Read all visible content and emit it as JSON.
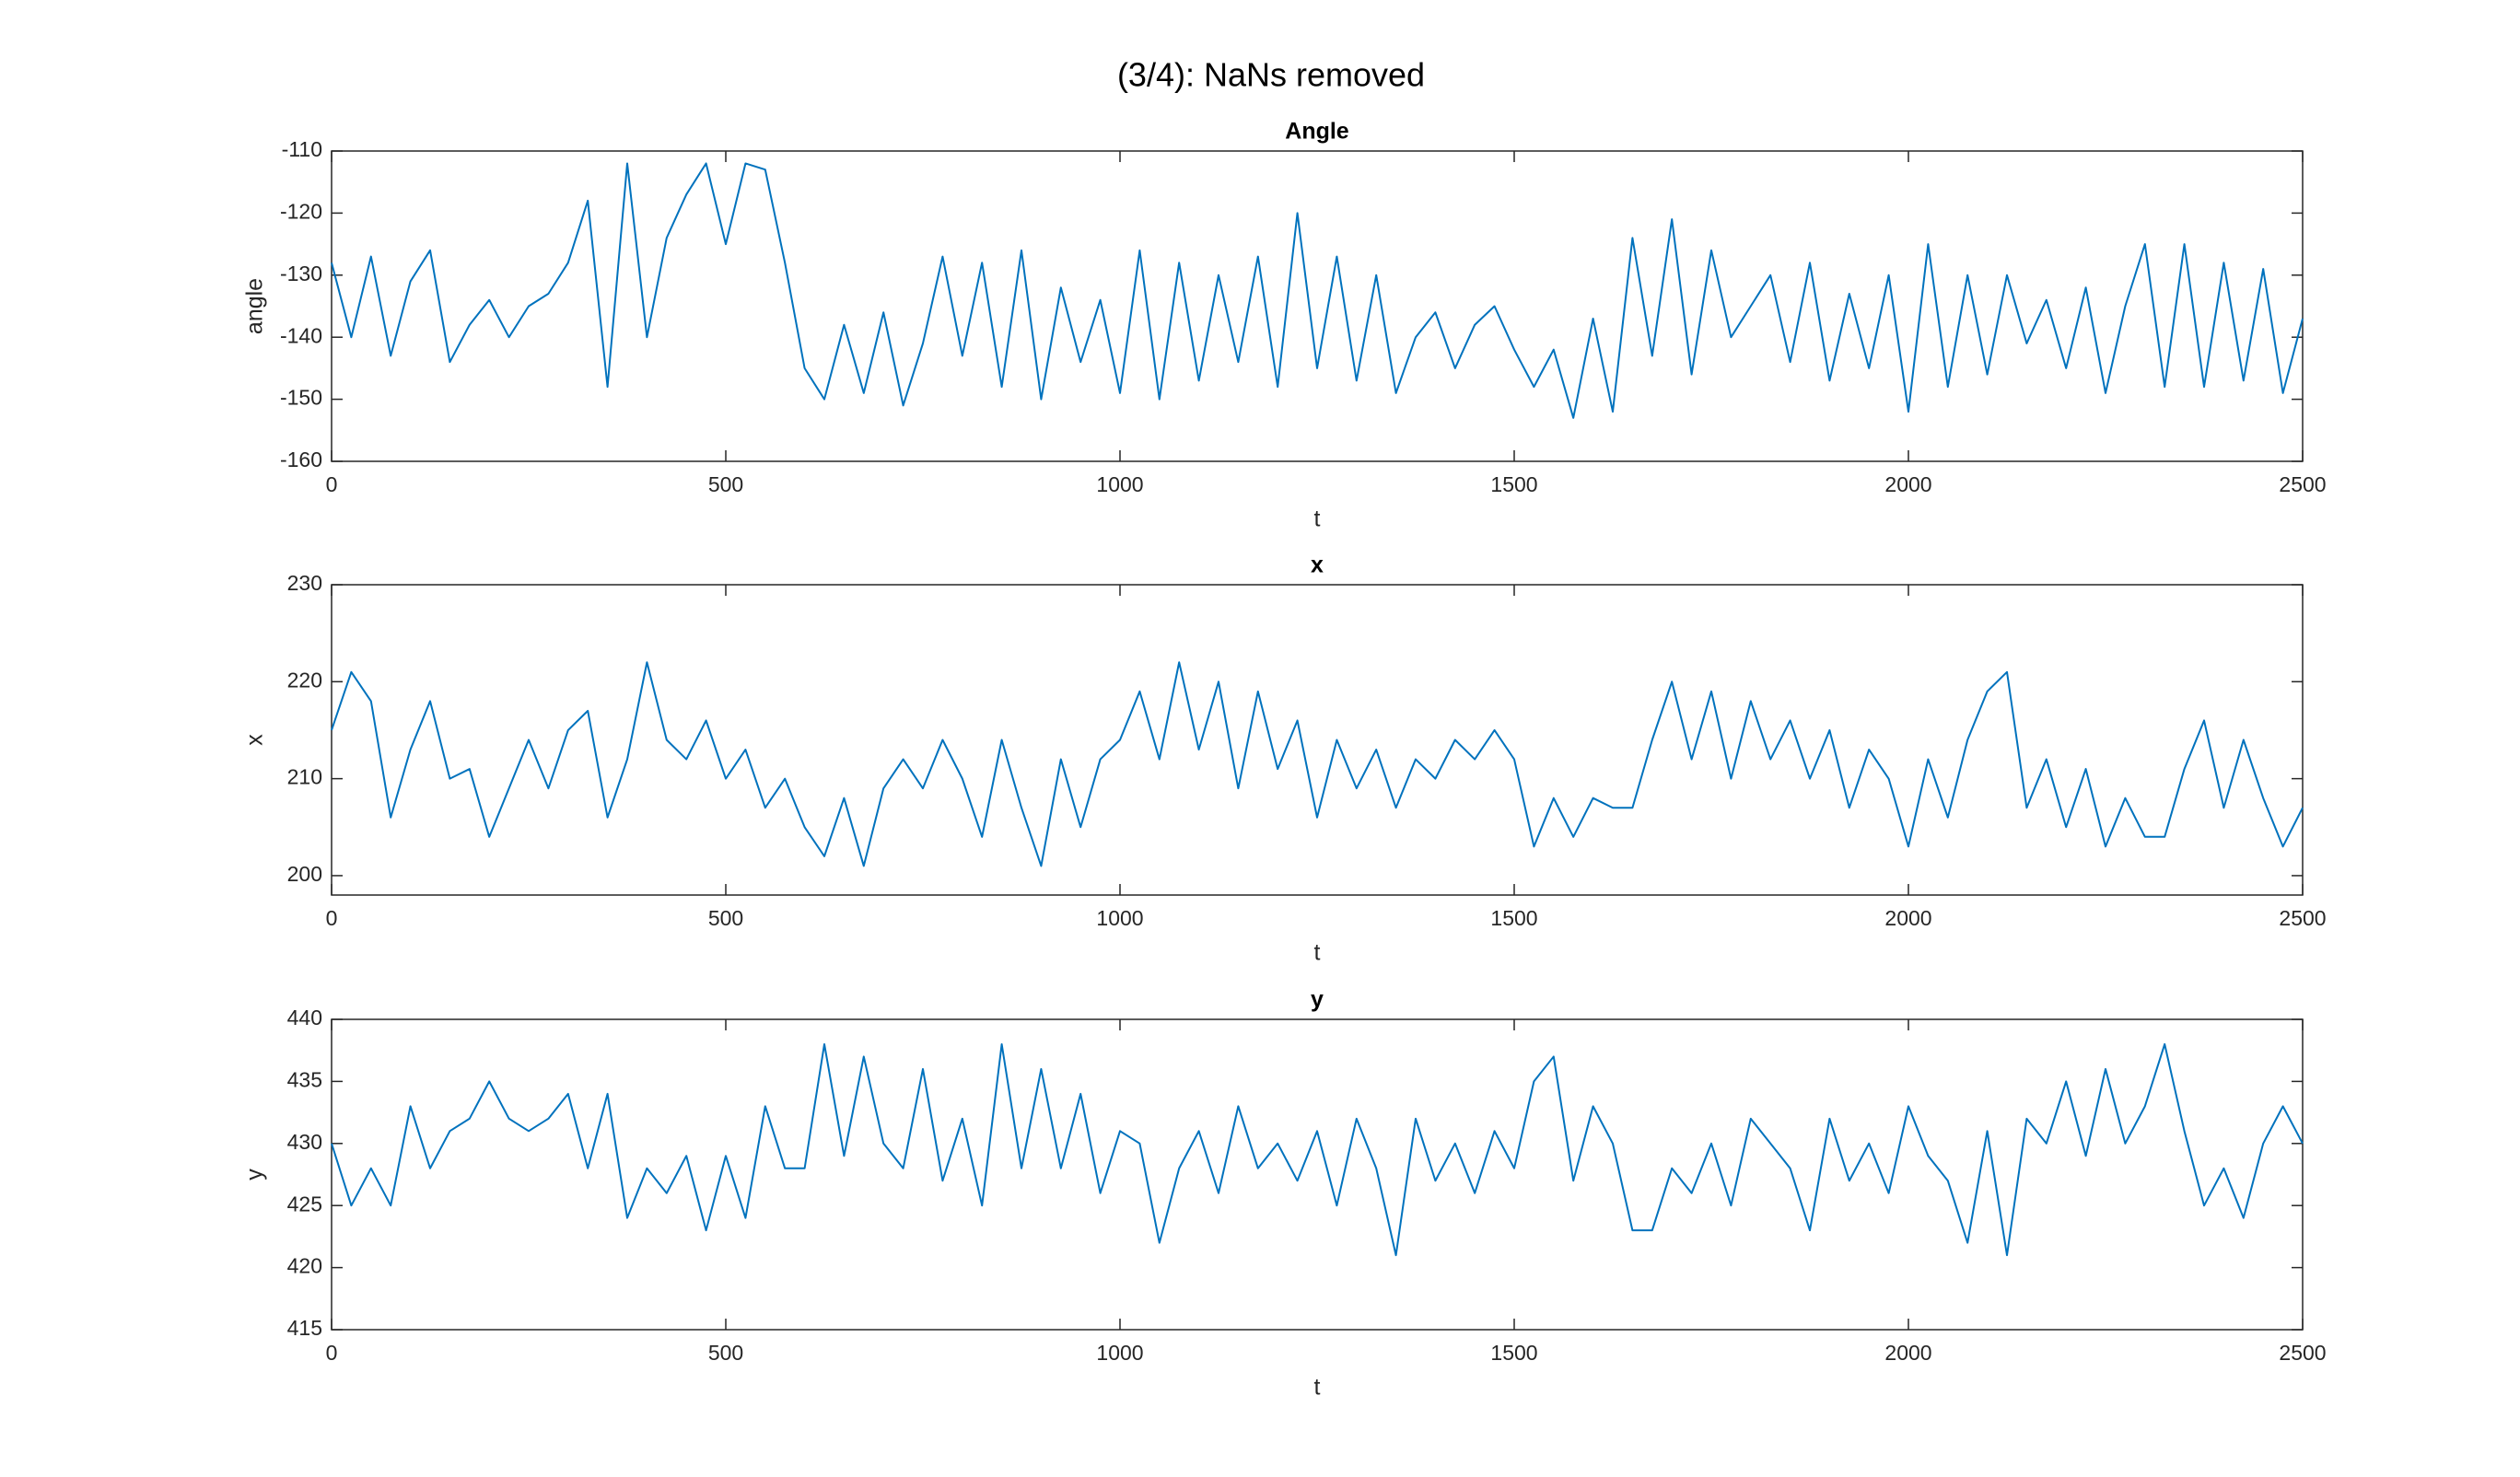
{
  "title": "(3/4): NaNs removed",
  "chart_data": [
    {
      "type": "line",
      "title": "Angle",
      "xlabel": "t",
      "ylabel": "angle",
      "xlim": [
        0,
        2500
      ],
      "xticks": [
        0,
        500,
        1000,
        1500,
        2000,
        2500
      ],
      "ylim": [
        -160,
        -110
      ],
      "yticks": [
        -160,
        -150,
        -140,
        -130,
        -120,
        -110
      ],
      "x": [
        0,
        25,
        50,
        75,
        100,
        125,
        150,
        175,
        200,
        225,
        250,
        275,
        300,
        325,
        350,
        375,
        400,
        425,
        450,
        475,
        500,
        525,
        550,
        575,
        600,
        625,
        650,
        675,
        700,
        725,
        750,
        775,
        800,
        825,
        850,
        875,
        900,
        925,
        950,
        975,
        1000,
        1025,
        1050,
        1075,
        1100,
        1125,
        1150,
        1175,
        1200,
        1225,
        1250,
        1275,
        1300,
        1325,
        1350,
        1375,
        1400,
        1425,
        1450,
        1475,
        1500,
        1525,
        1550,
        1575,
        1600,
        1625,
        1650,
        1675,
        1700,
        1725,
        1750,
        1775,
        1800,
        1825,
        1850,
        1875,
        1900,
        1925,
        1950,
        1975,
        2000,
        2025,
        2050,
        2075,
        2100,
        2125,
        2150,
        2175,
        2200,
        2225,
        2250,
        2275,
        2300,
        2325,
        2350,
        2375,
        2400,
        2425,
        2450,
        2475,
        2500
      ],
      "series": [
        {
          "color": "#0072BD",
          "values": [
            -128,
            -140,
            -127,
            -143,
            -131,
            -126,
            -144,
            -138,
            -134,
            -140,
            -135,
            -133,
            -128,
            -118,
            -148,
            -112,
            -140,
            -124,
            -117,
            -112,
            -125,
            -112,
            -113,
            -128,
            -145,
            -150,
            -138,
            -149,
            -136,
            -151,
            -141,
            -127,
            -143,
            -128,
            -148,
            -126,
            -150,
            -132,
            -144,
            -134,
            -149,
            -126,
            -150,
            -128,
            -147,
            -130,
            -144,
            -127,
            -148,
            -120,
            -145,
            -127,
            -147,
            -130,
            -149,
            -140,
            -136,
            -145,
            -138,
            -135,
            -142,
            -148,
            -142,
            -153,
            -137,
            -152,
            -124,
            -143,
            -121,
            -146,
            -126,
            -140,
            -135,
            -130,
            -144,
            -128,
            -147,
            -133,
            -145,
            -130,
            -152,
            -125,
            -148,
            -130,
            -146,
            -130,
            -141,
            -134,
            -145,
            -132,
            -149,
            -135,
            -125,
            -148,
            -125,
            -148,
            -128,
            -147,
            -129,
            -149,
            -137
          ]
        }
      ]
    },
    {
      "type": "line",
      "title": "x",
      "xlabel": "t",
      "ylabel": "x",
      "xlim": [
        0,
        2500
      ],
      "xticks": [
        0,
        500,
        1000,
        1500,
        2000,
        2500
      ],
      "ylim": [
        198,
        230
      ],
      "yticks": [
        200,
        210,
        220,
        230
      ],
      "x": [
        0,
        25,
        50,
        75,
        100,
        125,
        150,
        175,
        200,
        225,
        250,
        275,
        300,
        325,
        350,
        375,
        400,
        425,
        450,
        475,
        500,
        525,
        550,
        575,
        600,
        625,
        650,
        675,
        700,
        725,
        750,
        775,
        800,
        825,
        850,
        875,
        900,
        925,
        950,
        975,
        1000,
        1025,
        1050,
        1075,
        1100,
        1125,
        1150,
        1175,
        1200,
        1225,
        1250,
        1275,
        1300,
        1325,
        1350,
        1375,
        1400,
        1425,
        1450,
        1475,
        1500,
        1525,
        1550,
        1575,
        1600,
        1625,
        1650,
        1675,
        1700,
        1725,
        1750,
        1775,
        1800,
        1825,
        1850,
        1875,
        1900,
        1925,
        1950,
        1975,
        2000,
        2025,
        2050,
        2075,
        2100,
        2125,
        2150,
        2175,
        2200,
        2225,
        2250,
        2275,
        2300,
        2325,
        2350,
        2375,
        2400,
        2425,
        2450,
        2475,
        2500
      ],
      "series": [
        {
          "color": "#0072BD",
          "values": [
            215,
            221,
            218,
            206,
            213,
            218,
            210,
            211,
            204,
            209,
            214,
            209,
            215,
            217,
            206,
            212,
            222,
            214,
            212,
            216,
            210,
            213,
            207,
            210,
            205,
            202,
            208,
            201,
            209,
            212,
            209,
            214,
            210,
            204,
            214,
            207,
            201,
            212,
            205,
            212,
            214,
            219,
            212,
            222,
            213,
            220,
            209,
            219,
            211,
            216,
            206,
            214,
            209,
            213,
            207,
            212,
            210,
            214,
            212,
            215,
            212,
            203,
            208,
            204,
            208,
            207,
            207,
            214,
            220,
            212,
            219,
            210,
            218,
            212,
            216,
            210,
            215,
            207,
            213,
            210,
            203,
            212,
            206,
            214,
            219,
            221,
            207,
            212,
            205,
            211,
            203,
            208,
            204,
            204,
            211,
            216,
            207,
            214,
            208,
            203,
            207
          ]
        }
      ]
    },
    {
      "type": "line",
      "title": "y",
      "xlabel": "t",
      "ylabel": "y",
      "xlim": [
        0,
        2500
      ],
      "xticks": [
        0,
        500,
        1000,
        1500,
        2000,
        2500
      ],
      "ylim": [
        415,
        440
      ],
      "yticks": [
        415,
        420,
        425,
        430,
        435,
        440
      ],
      "x": [
        0,
        25,
        50,
        75,
        100,
        125,
        150,
        175,
        200,
        225,
        250,
        275,
        300,
        325,
        350,
        375,
        400,
        425,
        450,
        475,
        500,
        525,
        550,
        575,
        600,
        625,
        650,
        675,
        700,
        725,
        750,
        775,
        800,
        825,
        850,
        875,
        900,
        925,
        950,
        975,
        1000,
        1025,
        1050,
        1075,
        1100,
        1125,
        1150,
        1175,
        1200,
        1225,
        1250,
        1275,
        1300,
        1325,
        1350,
        1375,
        1400,
        1425,
        1450,
        1475,
        1500,
        1525,
        1550,
        1575,
        1600,
        1625,
        1650,
        1675,
        1700,
        1725,
        1750,
        1775,
        1800,
        1825,
        1850,
        1875,
        1900,
        1925,
        1950,
        1975,
        2000,
        2025,
        2050,
        2075,
        2100,
        2125,
        2150,
        2175,
        2200,
        2225,
        2250,
        2275,
        2300,
        2325,
        2350,
        2375,
        2400,
        2425,
        2450,
        2475,
        2500
      ],
      "series": [
        {
          "color": "#0072BD",
          "values": [
            430,
            425,
            428,
            425,
            433,
            428,
            431,
            432,
            435,
            432,
            431,
            432,
            434,
            428,
            434,
            424,
            428,
            426,
            429,
            423,
            429,
            424,
            433,
            428,
            428,
            438,
            429,
            437,
            430,
            428,
            436,
            427,
            432,
            425,
            438,
            428,
            436,
            428,
            434,
            426,
            431,
            430,
            422,
            428,
            431,
            426,
            433,
            428,
            430,
            427,
            431,
            425,
            432,
            428,
            421,
            432,
            427,
            430,
            426,
            431,
            428,
            435,
            437,
            427,
            433,
            430,
            423,
            423,
            428,
            426,
            430,
            425,
            432,
            430,
            428,
            423,
            432,
            427,
            430,
            426,
            433,
            429,
            427,
            422,
            431,
            421,
            432,
            430,
            435,
            429,
            436,
            430,
            433,
            438,
            431,
            425,
            428,
            424,
            430,
            433,
            430
          ]
        }
      ]
    }
  ]
}
